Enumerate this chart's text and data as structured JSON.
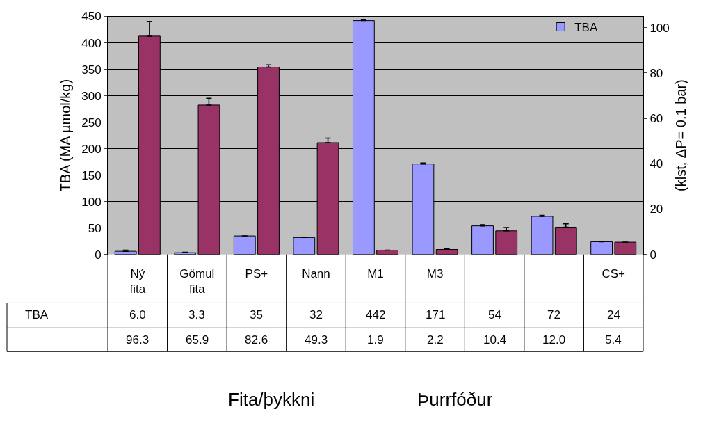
{
  "chart_data": {
    "type": "bar",
    "categories": [
      "Ný fita",
      "Gömul fita",
      "PS+",
      "Nann",
      "M1",
      "M3",
      null,
      null,
      "CS+"
    ],
    "series": [
      {
        "name": "TBA",
        "color": "#9999ff",
        "values": [
          6.0,
          3.3,
          35,
          32,
          442,
          171,
          54,
          72,
          24
        ],
        "value_labels": [
          "6.0",
          "3.3",
          "35",
          "32",
          "442",
          "171",
          "54",
          "72",
          "24"
        ],
        "errors": [
          2,
          1,
          null,
          null,
          2,
          2,
          2,
          2,
          null
        ]
      },
      {
        "color": "#993366",
        "axis": "y2",
        "values": [
          96.3,
          65.9,
          82.6,
          49.3,
          1.9,
          2.2,
          10.4,
          12.0,
          5.4
        ],
        "value_labels": [
          "96.3",
          "65.9",
          "82.6",
          "49.3",
          "1.9",
          "2.2",
          "10.4",
          "12.0",
          "5.4"
        ],
        "errors": [
          6.5,
          3,
          1,
          2,
          null,
          0.5,
          1.5,
          1.5,
          null
        ]
      }
    ],
    "ylabel": "TBA (MA µmol/kg)",
    "y2label": "(klst, ΔP= 0.1 bar)",
    "ylim": [
      0,
      450
    ],
    "yticks": [
      0,
      50,
      100,
      150,
      200,
      250,
      300,
      350,
      400,
      450
    ],
    "y2lim": [
      0,
      105
    ],
    "y2ticks": [
      0,
      20,
      40,
      60,
      80,
      100
    ],
    "annotations": [
      "Fita/þykkni",
      "Þurrfóður"
    ],
    "grid": "y",
    "legend": "top right"
  }
}
